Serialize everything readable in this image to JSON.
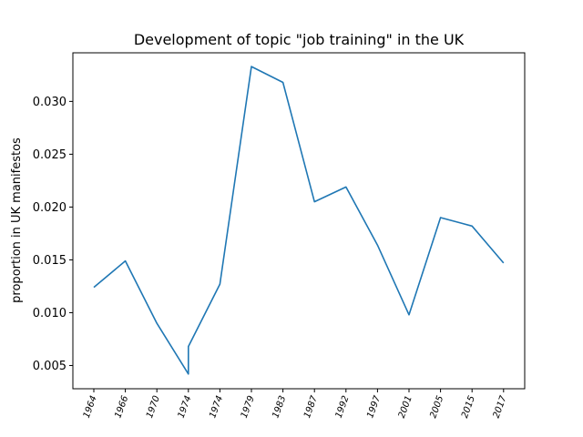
{
  "chart_data": {
    "type": "line",
    "title": "Development of topic \"job training\" in the UK",
    "xlabel": "",
    "ylabel": "proportion in UK manifestos",
    "x": [
      "1964",
      "1966",
      "1970",
      "1974",
      "1974",
      "1974",
      "1979",
      "1983",
      "1987",
      "1992",
      "1997",
      "2001",
      "2005",
      "2015",
      "2017"
    ],
    "x_ticks": [
      "1964",
      "1966",
      "1970",
      "1974",
      "1974",
      "1979",
      "1983",
      "1987",
      "1992",
      "1997",
      "2001",
      "2005",
      "2015",
      "2017"
    ],
    "series": [
      {
        "color": "#1f77b4",
        "values": [
          0.0124,
          0.0149,
          0.009,
          0.0042,
          0.0068,
          0.0127,
          0.0333,
          0.0318,
          0.0205,
          0.0219,
          0.0164,
          0.0098,
          0.019,
          0.0182,
          0.0147
        ]
      }
    ],
    "y_ticks": [
      "0.005",
      "0.010",
      "0.015",
      "0.020",
      "0.025",
      "0.030"
    ],
    "ylim": [
      0.0028,
      0.0346
    ],
    "grid": false,
    "legend": "none"
  }
}
